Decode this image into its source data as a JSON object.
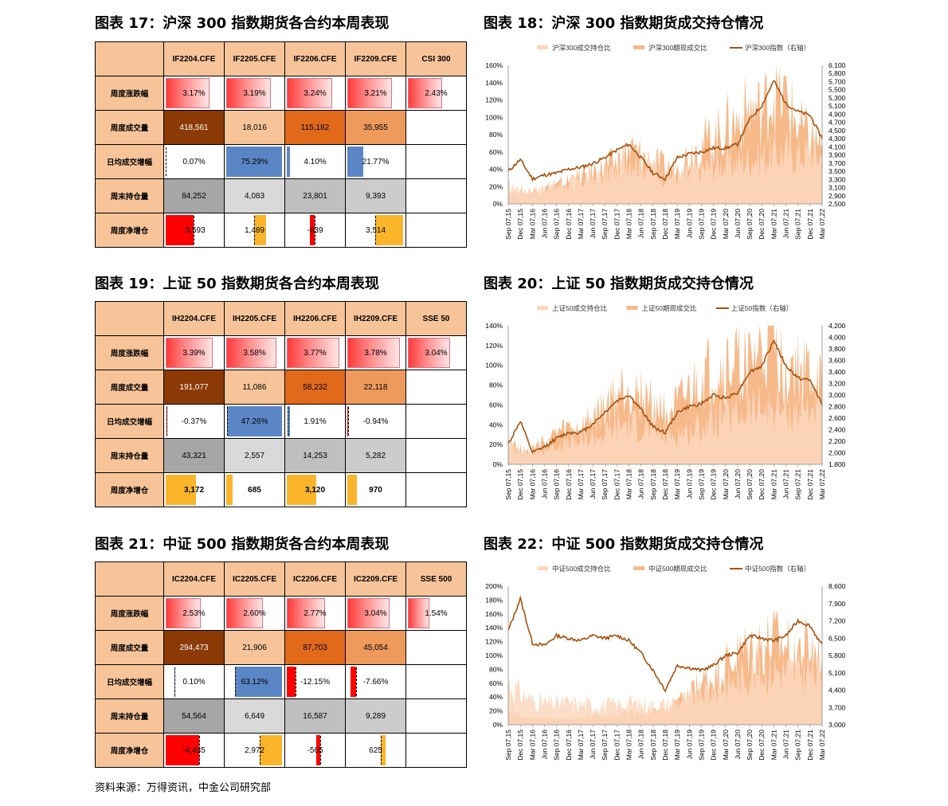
{
  "source_note": "资料来源：万得资讯，中金公司研究部",
  "table_columns_label": "",
  "tables": [
    {
      "title": "图表 17：沪深 300 指数期货各合约本周表现",
      "columns": [
        "IF2204.CFE",
        "IF2205.CFE",
        "IF2206.CFE",
        "IF2209.CFE",
        "CSI 300"
      ],
      "rows": [
        {
          "label": "周度涨跌幅",
          "kind": "pct",
          "values": [
            "3.17%",
            "3.19%",
            "3.24%",
            "3.21%",
            "2.43%"
          ],
          "nums": [
            3.17,
            3.19,
            3.24,
            3.21,
            2.43
          ]
        },
        {
          "label": "周度成交量",
          "kind": "heat",
          "values": [
            "418,561",
            "18,016",
            "115,182",
            "35,955",
            ""
          ],
          "nums": [
            418561,
            18016,
            115182,
            35955,
            null
          ]
        },
        {
          "label": "日均成交增幅",
          "kind": "blue",
          "values": [
            "0.07%",
            "75.29%",
            "4.10%",
            "21.77%",
            ""
          ],
          "nums": [
            0.07,
            75.29,
            4.1,
            21.77,
            null
          ]
        },
        {
          "label": "周末持仓量",
          "kind": "gray",
          "values": [
            "84,252",
            "4,083",
            "23,801",
            "9,393",
            ""
          ],
          "nums": [
            84252,
            4083,
            23801,
            9393,
            null
          ]
        },
        {
          "label": "周度净增仓",
          "kind": "net",
          "values": [
            "-3,593",
            "1,489",
            "-639",
            "3,514",
            ""
          ],
          "nums": [
            -3593,
            1489,
            -639,
            3514,
            null
          ]
        }
      ]
    },
    {
      "title": "图表 19：上证 50 指数期货各合约本周表现",
      "columns": [
        "IH2204.CFE",
        "IH2205.CFE",
        "IH2206.CFE",
        "IH2209.CFE",
        "SSE 50"
      ],
      "rows": [
        {
          "label": "周度涨跌幅",
          "kind": "pct",
          "values": [
            "3.39%",
            "3.58%",
            "3.77%",
            "3.78%",
            "3.04%"
          ],
          "nums": [
            3.39,
            3.58,
            3.77,
            3.78,
            3.04
          ]
        },
        {
          "label": "周度成交量",
          "kind": "heat",
          "values": [
            "191,077",
            "11,086",
            "58,232",
            "22,118",
            ""
          ],
          "nums": [
            191077,
            11086,
            58232,
            22118,
            null
          ]
        },
        {
          "label": "日均成交增幅",
          "kind": "blue",
          "values": [
            "-0.37%",
            "47.26%",
            "1.91%",
            "-0.94%",
            ""
          ],
          "nums": [
            -0.37,
            47.26,
            1.91,
            -0.94,
            null
          ]
        },
        {
          "label": "周末持仓量",
          "kind": "gray",
          "values": [
            "43,321",
            "2,557",
            "14,253",
            "5,282",
            ""
          ],
          "nums": [
            43321,
            2557,
            14253,
            5282,
            null
          ]
        },
        {
          "label": "周度净增仓",
          "kind": "netpos",
          "values": [
            "3,172",
            "685",
            "3,120",
            "970",
            ""
          ],
          "nums": [
            3172,
            685,
            3120,
            970,
            null
          ]
        }
      ]
    },
    {
      "title": "图表 21：中证 500 指数期货各合约本周表现",
      "columns": [
        "IC2204.CFE",
        "IC2205.CFE",
        "IC2206.CFE",
        "IC2209.CFE",
        "SSE 500"
      ],
      "rows": [
        {
          "label": "周度涨跌幅",
          "kind": "pct",
          "values": [
            "2.53%",
            "2.60%",
            "2.77%",
            "3.04%",
            "1.54%"
          ],
          "nums": [
            2.53,
            2.6,
            2.77,
            3.04,
            1.54
          ]
        },
        {
          "label": "周度成交量",
          "kind": "heat",
          "values": [
            "294,473",
            "21,906",
            "87,703",
            "45,054",
            ""
          ],
          "nums": [
            294473,
            21906,
            87703,
            45054,
            null
          ]
        },
        {
          "label": "日均成交增幅",
          "kind": "blue",
          "values": [
            "0.10%",
            "63.12%",
            "-12.15%",
            "-7.66%",
            ""
          ],
          "nums": [
            0.1,
            63.12,
            -12.15,
            -7.66,
            null
          ]
        },
        {
          "label": "周末持仓量",
          "kind": "gray",
          "values": [
            "54,564",
            "6,649",
            "16,587",
            "9,289",
            ""
          ],
          "nums": [
            54564,
            6649,
            16587,
            9289,
            null
          ]
        },
        {
          "label": "周度净增仓",
          "kind": "net",
          "values": [
            "-4,435",
            "2,972",
            "-565",
            "625",
            ""
          ],
          "nums": [
            -4435,
            2972,
            -565,
            625,
            null
          ]
        }
      ]
    }
  ],
  "colors": {
    "header": "#f7c49a",
    "pct_from": "#ff3a3a",
    "pct_to": "#ffe6e6",
    "heat_dark": "#8b3a06",
    "heat_mid": "#e0691a",
    "heat_light": "#f7c49a",
    "blue": "#5b86c5",
    "gray_dark": "#a6a6a6",
    "gray_light": "#d9d9d9",
    "neg": "#ff0000",
    "pos": "#fbb52a",
    "area_light": "#fbd7bd",
    "area_mid": "#f6b98a",
    "line": "#a6510f"
  },
  "chart_data": [
    {
      "type": "area",
      "title": "图表 18：沪深 300 指数期货成交持仓情况",
      "x_ticks": [
        "Sep 07,15",
        "Dec 07,15",
        "Mar 07,16",
        "Jun 07,16",
        "Sep 07,16",
        "Dec 07,16",
        "Mar 07,17",
        "Jun 07,17",
        "Sep 07,17",
        "Dec 07,17",
        "Mar 07,18",
        "Jun 07,18",
        "Sep 07,18",
        "Dec 07,18",
        "Mar 07,19",
        "Jun 07,19",
        "Sep 07,19",
        "Dec 07,19",
        "Mar 07,20",
        "Jun 07,20",
        "Sep 07,20",
        "Dec 07,20",
        "Mar 07,21",
        "Jun 07,21",
        "Sep 07,21",
        "Dec 07,21",
        "Mar 07,22"
      ],
      "series": [
        {
          "name": "沪深300成交持仓比",
          "axis": "left",
          "kind": "area",
          "values": [
            20,
            18,
            16,
            20,
            22,
            25,
            26,
            30,
            35,
            40,
            55,
            48,
            42,
            35,
            32,
            34,
            40,
            45,
            46,
            48,
            52,
            55,
            58,
            60,
            58,
            60,
            55
          ]
        },
        {
          "name": "沪深300期现成交比",
          "axis": "left",
          "kind": "area",
          "values": [
            15,
            12,
            14,
            18,
            20,
            26,
            30,
            36,
            42,
            48,
            62,
            55,
            48,
            40,
            42,
            58,
            70,
            75,
            88,
            95,
            110,
            105,
            130,
            120,
            90,
            75,
            70
          ]
        },
        {
          "name": "沪深300指数（右轴）",
          "axis": "right",
          "kind": "line",
          "values": [
            3350,
            3650,
            3150,
            3250,
            3300,
            3400,
            3450,
            3550,
            3700,
            3900,
            4050,
            3700,
            3300,
            3150,
            3700,
            3800,
            3850,
            3950,
            3950,
            4050,
            4700,
            5050,
            5700,
            5100,
            4900,
            4800,
            4200
          ]
        }
      ],
      "ylim_left": [
        0,
        160
      ],
      "yticks_left": [
        "0%",
        "20%",
        "40%",
        "60%",
        "80%",
        "100%",
        "120%",
        "140%",
        "160%"
      ],
      "ylim_right": [
        2500,
        6100
      ],
      "yticks_right": [
        "2,500",
        "2,900",
        "3,100",
        "3,300",
        "3,500",
        "3,700",
        "3,900",
        "4,100",
        "4,300",
        "4,500",
        "4,700",
        "4,900",
        "5,100",
        "5,300",
        "5,500",
        "5,700",
        "5,800",
        "6,100"
      ],
      "legend_position": "top"
    },
    {
      "type": "area",
      "title": "图表 20：上证 50 指数期货成交持仓情况",
      "x_ticks": [
        "Sep 07,15",
        "Dec 07,15",
        "Mar 07,16",
        "Jun 07,16",
        "Sep 07,16",
        "Dec 07,16",
        "Mar 07,17",
        "Jun 07,17",
        "Sep 07,17",
        "Dec 07,17",
        "Mar 07,18",
        "Jun 07,18",
        "Sep 07,18",
        "Dec 07,18",
        "Mar 07,19",
        "Jun 07,19",
        "Sep 07,19",
        "Dec 07,19",
        "Mar 07,20",
        "Jun 07,20",
        "Sep 07,20",
        "Dec 07,20",
        "Mar 07,21",
        "Jun 07,21",
        "Sep 07,21",
        "Dec 07,21",
        "Mar 07,22"
      ],
      "series": [
        {
          "name": "上证50成交持仓比",
          "axis": "left",
          "kind": "area",
          "values": [
            20,
            15,
            12,
            15,
            20,
            22,
            22,
            28,
            30,
            38,
            42,
            38,
            34,
            30,
            32,
            34,
            40,
            45,
            48,
            50,
            55,
            55,
            58,
            55,
            55,
            58,
            50
          ]
        },
        {
          "name": "上证50期现成交比",
          "axis": "left",
          "kind": "area",
          "values": [
            25,
            15,
            15,
            22,
            30,
            35,
            35,
            45,
            55,
            70,
            80,
            70,
            60,
            55,
            55,
            70,
            85,
            90,
            95,
            100,
            100,
            110,
            125,
            100,
            95,
            90,
            80
          ]
        },
        {
          "name": "上证50指数（右轴）",
          "axis": "right",
          "kind": "line",
          "values": [
            2150,
            2550,
            2000,
            2100,
            2250,
            2350,
            2350,
            2500,
            2700,
            2900,
            3000,
            2750,
            2450,
            2350,
            2700,
            2800,
            2850,
            3000,
            2950,
            3050,
            3400,
            3500,
            3950,
            3500,
            3300,
            3250,
            2850
          ]
        }
      ],
      "ylim_left": [
        0,
        140
      ],
      "yticks_left": [
        "0%",
        "20%",
        "40%",
        "60%",
        "80%",
        "100%",
        "120%",
        "140%"
      ],
      "ylim_right": [
        1800,
        4200
      ],
      "yticks_right": [
        "1,800",
        "2,000",
        "2,200",
        "2,400",
        "2,600",
        "2,800",
        "3,000",
        "3,200",
        "3,400",
        "3,600",
        "3,800",
        "4,000",
        "4,200"
      ],
      "legend_position": "top"
    },
    {
      "type": "area",
      "title": "图表 22：中证 500 指数期货成交持仓情况",
      "x_ticks": [
        "Sep 07,15",
        "Dec 07,15",
        "Mar 07,16",
        "Jun 07,16",
        "Sep 07,16",
        "Dec 07,16",
        "Mar 07,17",
        "Jun 07,17",
        "Sep 07,17",
        "Dec 07,17",
        "Mar 07,18",
        "Jun 07,18",
        "Sep 07,18",
        "Dec 07,18",
        "Mar 07,19",
        "Jun 07,19",
        "Sep 07,19",
        "Dec 07,19",
        "Mar 07,20",
        "Jun 07,20",
        "Sep 07,20",
        "Dec 07,20",
        "Mar 07,21",
        "Jun 07,21",
        "Sep 07,21",
        "Dec 07,21",
        "Mar 07,22"
      ],
      "series": [
        {
          "name": "中证500成交持仓比",
          "axis": "left",
          "kind": "area",
          "values": [
            60,
            45,
            35,
            32,
            30,
            32,
            30,
            28,
            28,
            30,
            32,
            30,
            28,
            30,
            35,
            38,
            45,
            50,
            60,
            65,
            75,
            78,
            80,
            78,
            75,
            80,
            70
          ]
        },
        {
          "name": "中证500期现成交比",
          "axis": "left",
          "kind": "area",
          "values": [
            25,
            15,
            10,
            10,
            8,
            8,
            10,
            12,
            12,
            14,
            18,
            18,
            18,
            20,
            30,
            45,
            60,
            70,
            85,
            100,
            110,
            115,
            120,
            115,
            110,
            110,
            100
          ]
        },
        {
          "name": "中证500指数（右轴）",
          "axis": "right",
          "kind": "line",
          "values": [
            6800,
            8100,
            6300,
            6200,
            6600,
            6500,
            6400,
            6600,
            6500,
            6600,
            6400,
            5900,
            5200,
            4400,
            5400,
            5300,
            5200,
            5400,
            5800,
            5900,
            6600,
            6500,
            6400,
            6600,
            7200,
            7000,
            6200
          ]
        }
      ],
      "ylim_left": [
        0,
        200
      ],
      "yticks_left": [
        "0%",
        "20%",
        "40%",
        "60%",
        "80%",
        "100%",
        "120%",
        "140%",
        "160%",
        "180%",
        "200%"
      ],
      "ylim_right": [
        3000,
        8600
      ],
      "yticks_right": [
        "3,000",
        "3,700",
        "4,400",
        "5,100",
        "5,800",
        "6,500",
        "7,200",
        "7,900",
        "8,600"
      ],
      "legend_position": "top"
    }
  ]
}
